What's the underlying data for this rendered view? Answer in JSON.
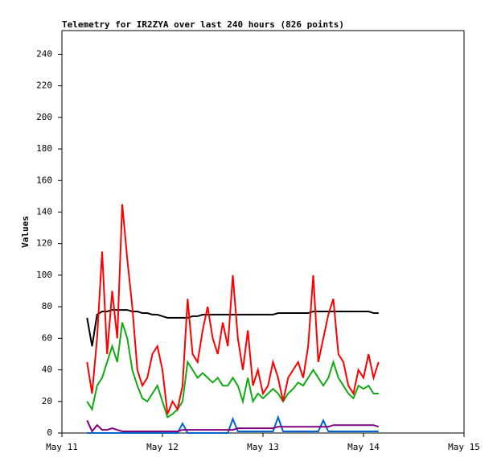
{
  "chart_data": {
    "type": "line",
    "title": "Telemetry for IR2ZYA over last 240 hours (826 points)",
    "y_label": "Values",
    "x": [
      11.25,
      11.3,
      11.35,
      11.4,
      11.45,
      11.5,
      11.55,
      11.6,
      11.65,
      11.7,
      11.75,
      11.8,
      11.85,
      11.9,
      11.95,
      12,
      12.05,
      12.1,
      12.15,
      12.2,
      12.25,
      12.3,
      12.35,
      12.4,
      12.45,
      12.5,
      12.55,
      12.6,
      12.65,
      12.7,
      12.75,
      12.8,
      12.85,
      12.9,
      12.95,
      13,
      13.05,
      13.1,
      13.15,
      13.2,
      13.25,
      13.3,
      13.35,
      13.4,
      13.45,
      13.5,
      13.55,
      13.6,
      13.65,
      13.7,
      13.75,
      13.8,
      13.85,
      13.9,
      13.95,
      14,
      14.05,
      14.1,
      14.15
    ],
    "series": [
      {
        "color": "#000000",
        "values": [
          73,
          55,
          75,
          77,
          77,
          78,
          78,
          78,
          78,
          77,
          77,
          76,
          76,
          75,
          75,
          74,
          73,
          73,
          73,
          73,
          73,
          74,
          74,
          75,
          75,
          75,
          75,
          75,
          75,
          75,
          75,
          75,
          75,
          75,
          75,
          75,
          75,
          75,
          76,
          76,
          76,
          76,
          76,
          76,
          76,
          77,
          77,
          77,
          77,
          77,
          77,
          77,
          77,
          77,
          77,
          77,
          77,
          76,
          76
        ]
      },
      {
        "color": "#11aa11",
        "values": [
          20,
          15,
          30,
          35,
          45,
          55,
          45,
          70,
          60,
          40,
          30,
          22,
          20,
          25,
          30,
          20,
          10,
          12,
          15,
          20,
          45,
          40,
          35,
          38,
          35,
          32,
          35,
          30,
          30,
          35,
          30,
          20,
          35,
          20,
          25,
          22,
          25,
          28,
          25,
          20,
          25,
          28,
          32,
          30,
          35,
          40,
          35,
          30,
          35,
          45,
          35,
          30,
          25,
          22,
          30,
          28,
          30,
          25,
          25
        ]
      },
      {
        "color": "#ff0000",
        "values": [
          45,
          25,
          60,
          115,
          50,
          90,
          60,
          145,
          110,
          80,
          40,
          30,
          35,
          50,
          55,
          40,
          12,
          20,
          15,
          30,
          85,
          50,
          45,
          65,
          80,
          60,
          50,
          70,
          55,
          100,
          60,
          40,
          65,
          30,
          40,
          25,
          30,
          45,
          35,
          20,
          35,
          40,
          45,
          35,
          55,
          100,
          45,
          60,
          75,
          85,
          50,
          45,
          30,
          25,
          40,
          35,
          50,
          35,
          45
        ]
      },
      {
        "color": "#0066cc",
        "values": [
          0,
          0,
          0,
          0,
          0,
          0,
          0,
          0,
          0,
          0,
          0,
          0,
          0,
          0,
          0,
          0,
          0,
          0,
          0,
          6,
          0,
          0,
          0,
          0,
          0,
          0,
          0,
          0,
          0,
          9,
          1,
          1,
          1,
          1,
          1,
          1,
          1,
          1,
          10,
          1,
          1,
          1,
          1,
          1,
          1,
          1,
          1,
          8,
          1,
          1,
          1,
          1,
          1,
          1,
          1,
          1,
          1,
          1,
          1
        ]
      },
      {
        "color": "#800080",
        "values": [
          8,
          1,
          5,
          2,
          2,
          3,
          2,
          1,
          1,
          1,
          1,
          1,
          1,
          1,
          1,
          1,
          1,
          1,
          1,
          2,
          2,
          2,
          2,
          2,
          2,
          2,
          2,
          2,
          2,
          2,
          3,
          3,
          3,
          3,
          3,
          3,
          3,
          3,
          4,
          4,
          4,
          4,
          4,
          4,
          4,
          4,
          4,
          4,
          4,
          5,
          5,
          5,
          5,
          5,
          5,
          5,
          5,
          5,
          4
        ]
      }
    ],
    "xlim": [
      11,
      15
    ],
    "xticks": [
      {
        "value": 11,
        "label": "May 11"
      },
      {
        "value": 12,
        "label": "May 12"
      },
      {
        "value": 13,
        "label": "May 13"
      },
      {
        "value": 14,
        "label": "May 14"
      },
      {
        "value": 15,
        "label": "May 15"
      }
    ],
    "ylim": [
      0,
      255
    ],
    "yticks": [
      0,
      20,
      40,
      60,
      80,
      100,
      120,
      140,
      160,
      180,
      200,
      220,
      240
    ]
  }
}
